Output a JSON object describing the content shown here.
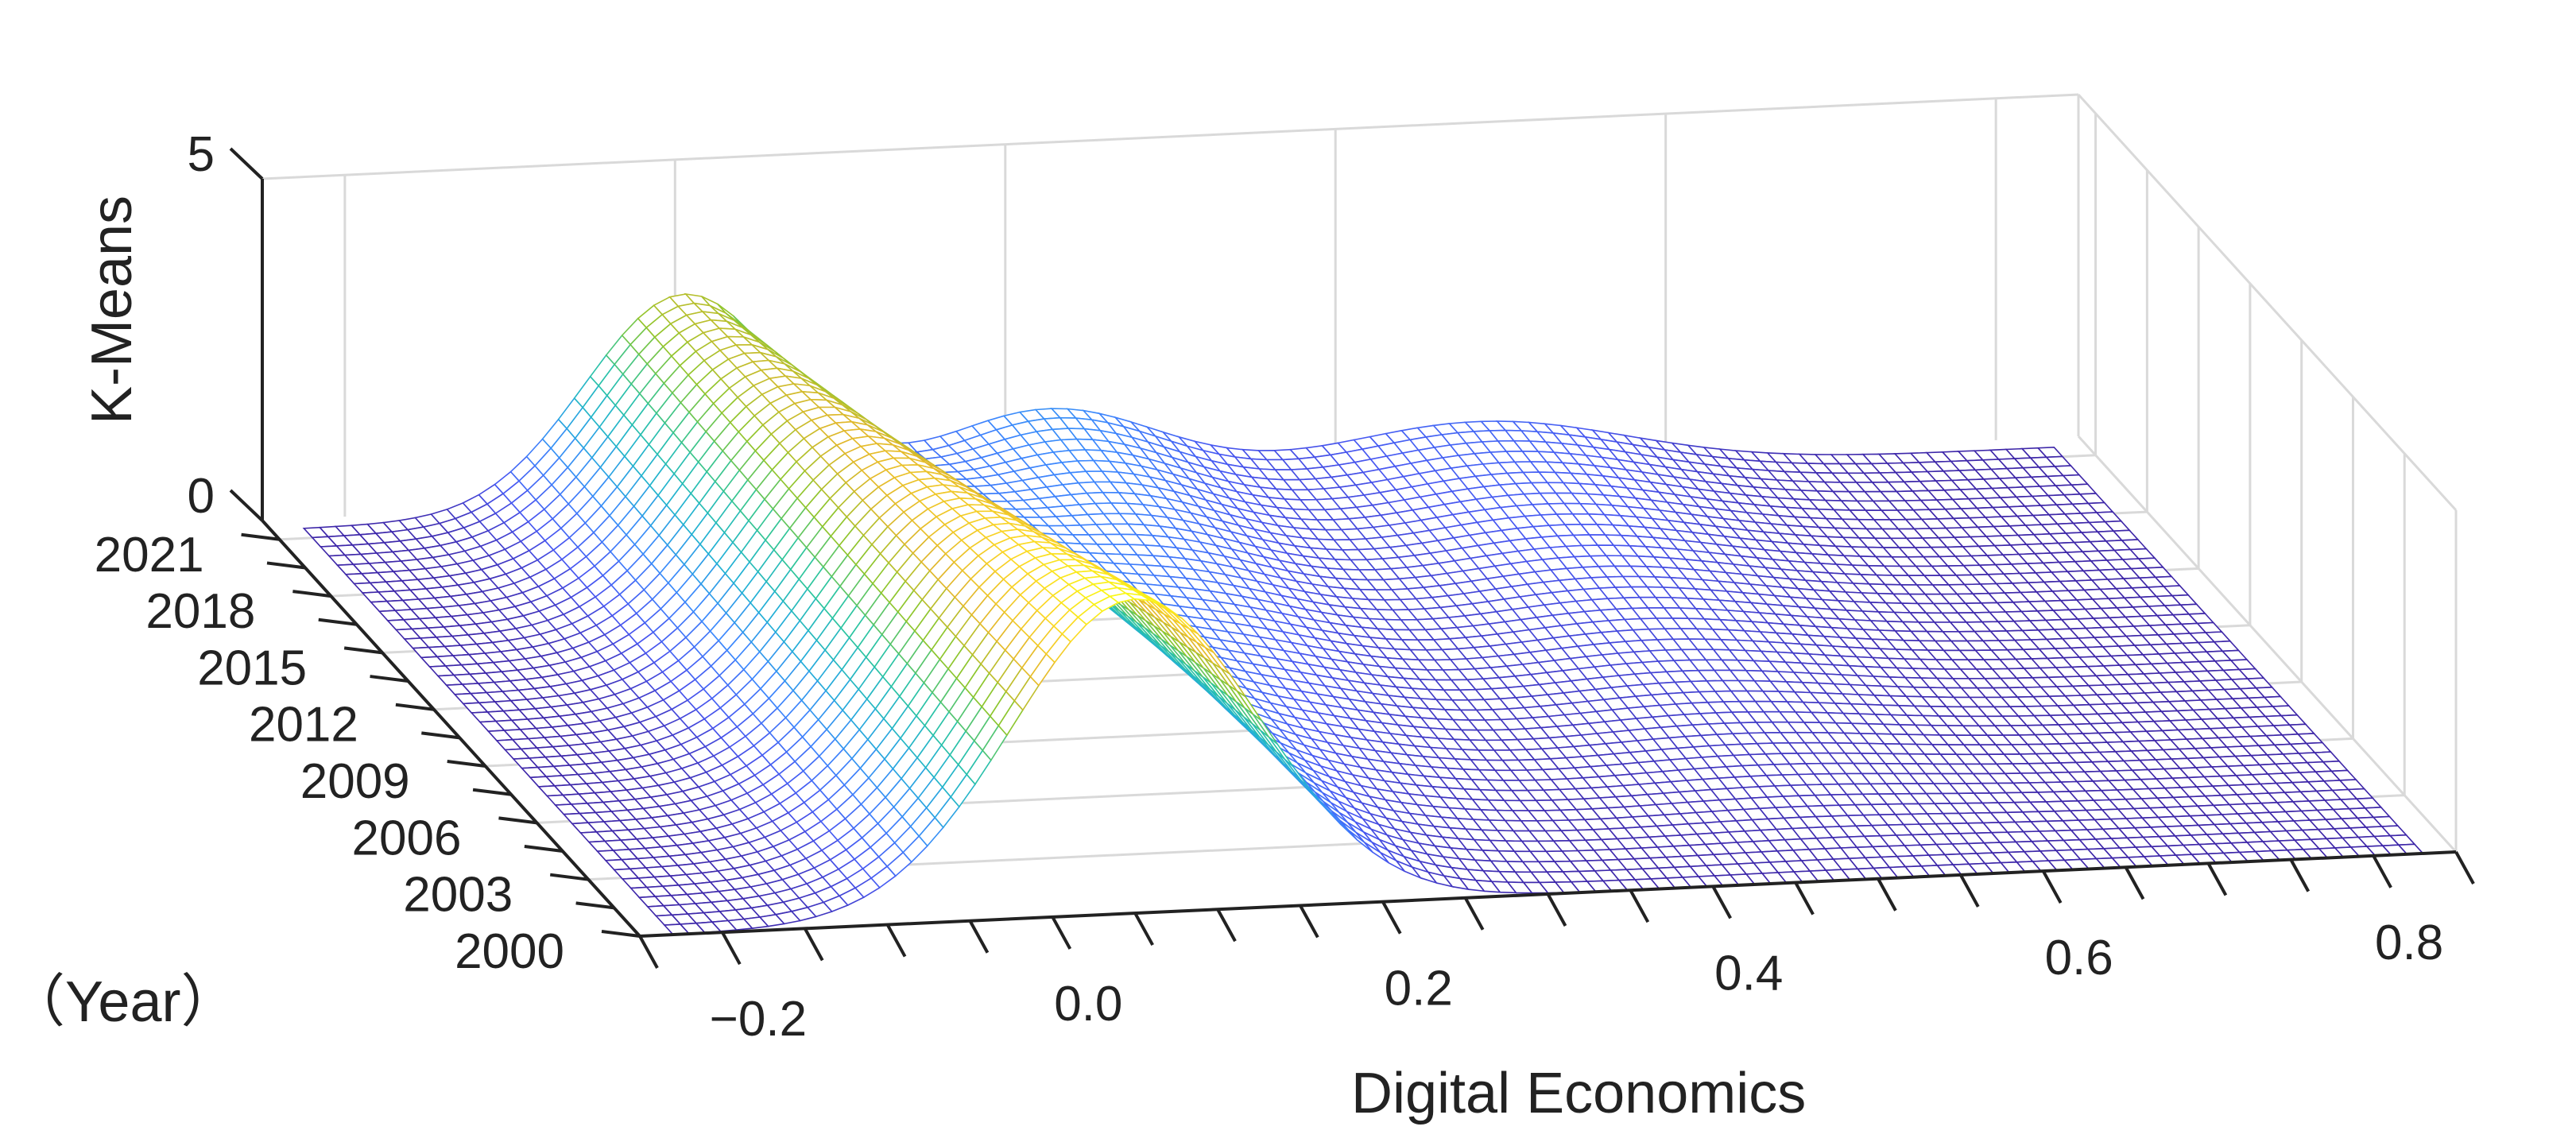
{
  "chart_data": {
    "type": "surface",
    "title": "",
    "xlabel": "Digital Economics",
    "ylabel": "（Year）",
    "zlabel": "K-Means",
    "xlim": [
      -0.25,
      0.85
    ],
    "xticks": [
      -0.2,
      0.0,
      0.2,
      0.4,
      0.6,
      0.8
    ],
    "xtick_labels": [
      "−0.2",
      "0.0",
      "0.2",
      "0.4",
      "0.6",
      "0.8"
    ],
    "ylim": [
      2000,
      2022
    ],
    "yticks": [
      2000,
      2003,
      2006,
      2009,
      2012,
      2015,
      2018,
      2021
    ],
    "ytick_labels": [
      "2000",
      "2003",
      "2006",
      "2009",
      "2012",
      "2015",
      "2018",
      "2021"
    ],
    "zlim": [
      0,
      5
    ],
    "zticks": [
      0,
      5
    ],
    "ztick_labels": [
      "0",
      "5"
    ],
    "colormap": [
      "#3d26a8",
      "#4757f1",
      "#3c88fd",
      "#22b1d4",
      "#2cc59e",
      "#8dc62d",
      "#e2b82c",
      "#fbd526",
      "#f9fa14"
    ],
    "grid": true,
    "wireframe": true,
    "density_components": {
      "year_2000": [
        {
          "mean": 0.05,
          "sd": 0.075,
          "weight": 1.0
        }
      ],
      "year_2021": [
        {
          "mean": 0.0,
          "sd": 0.06,
          "weight": 0.55
        },
        {
          "mean": 0.22,
          "sd": 0.07,
          "weight": 0.25
        },
        {
          "mean": 0.48,
          "sd": 0.09,
          "weight": 0.2
        }
      ]
    },
    "peak_value_approx": 4.6
  }
}
